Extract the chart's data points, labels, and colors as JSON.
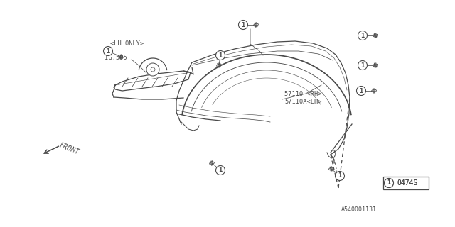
{
  "bg_color": "#ffffff",
  "stroke_color": "#4a4a4a",
  "labels": {
    "lh_only": "<LH ONLY>",
    "fig505": "FIG.505",
    "front": "FRONT",
    "part_rh": "57110 <RH>",
    "part_lh": "57110A<LH>",
    "part_code": "0474S",
    "diagram_code": "A540001131"
  }
}
